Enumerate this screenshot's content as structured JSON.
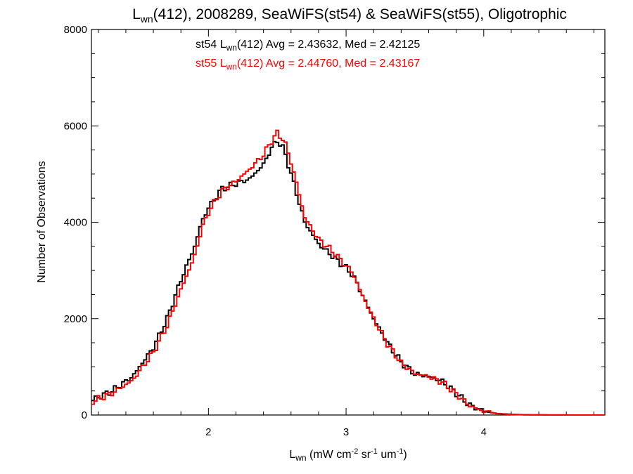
{
  "chart_data": {
    "type": "line",
    "title": {
      "pre": "L",
      "sub": "wn",
      "post": "(412), 2008289, SeaWiFS(st54) & SeaWiFS(st55), Oligotrophic"
    },
    "xlabel": {
      "pre": "L",
      "sub": "wn",
      "post1": " (mW cm",
      "sup1": "-2",
      "post2": " sr",
      "sup2": "-1",
      "post3": " um",
      "sup3": "-1",
      "post4": ")"
    },
    "ylabel": "Number of Observations",
    "xlim": [
      1.15,
      4.88
    ],
    "ylim": [
      0,
      8000
    ],
    "x_ticks": [
      2,
      3,
      4
    ],
    "x_tick_labels": [
      "2",
      "3",
      "4"
    ],
    "y_ticks": [
      0,
      2000,
      4000,
      6000,
      8000
    ],
    "y_tick_labels": [
      "0",
      "2000",
      "4000",
      "6000",
      "8000"
    ],
    "annotations": [
      {
        "pre": "st54 L",
        "sub": "wn",
        "post": "(412) Avg = 2.43632, Med = 2.42125",
        "color": "#000000"
      },
      {
        "pre": "st55 L",
        "sub": "wn",
        "post": "(412) Avg = 2.44760, Med = 2.43167",
        "color": "#ff0000"
      }
    ],
    "series": [
      {
        "color": "#000000",
        "x": [
          1.15,
          1.3,
          1.45,
          1.6,
          1.7,
          1.8,
          1.9,
          1.95,
          2.0,
          2.05,
          2.1,
          2.2,
          2.3,
          2.4,
          2.45,
          2.5,
          2.55,
          2.6,
          2.65,
          2.7,
          2.8,
          2.9,
          3.0,
          3.05,
          3.1,
          3.2,
          3.3,
          3.4,
          3.5,
          3.6,
          3.7,
          3.8,
          3.9,
          4.0,
          4.1,
          4.2,
          4.3,
          4.5,
          4.7,
          4.88
        ],
        "y": [
          300,
          500,
          800,
          1400,
          2000,
          2800,
          3500,
          4000,
          4300,
          4500,
          4700,
          4800,
          4900,
          5200,
          5500,
          5700,
          5500,
          5000,
          4500,
          4000,
          3550,
          3300,
          3050,
          2900,
          2600,
          2000,
          1500,
          1100,
          850,
          800,
          700,
          450,
          200,
          80,
          30,
          15,
          5,
          2,
          0,
          0
        ]
      },
      {
        "color": "#ff0000",
        "x": [
          1.15,
          1.3,
          1.45,
          1.6,
          1.7,
          1.8,
          1.9,
          1.95,
          2.0,
          2.05,
          2.1,
          2.2,
          2.3,
          2.4,
          2.45,
          2.5,
          2.55,
          2.6,
          2.65,
          2.7,
          2.8,
          2.9,
          3.0,
          3.05,
          3.1,
          3.2,
          3.3,
          3.4,
          3.5,
          3.6,
          3.7,
          3.8,
          3.9,
          4.0,
          4.1,
          4.2,
          4.3,
          4.5,
          4.7,
          4.88
        ],
        "y": [
          270,
          450,
          720,
          1300,
          1850,
          2600,
          3300,
          3850,
          4200,
          4450,
          4650,
          4850,
          5100,
          5400,
          5650,
          5850,
          5700,
          5250,
          4700,
          4100,
          3650,
          3400,
          3100,
          2950,
          2600,
          2000,
          1480,
          1080,
          860,
          800,
          680,
          440,
          190,
          75,
          28,
          12,
          4,
          2,
          0,
          0
        ]
      }
    ]
  }
}
